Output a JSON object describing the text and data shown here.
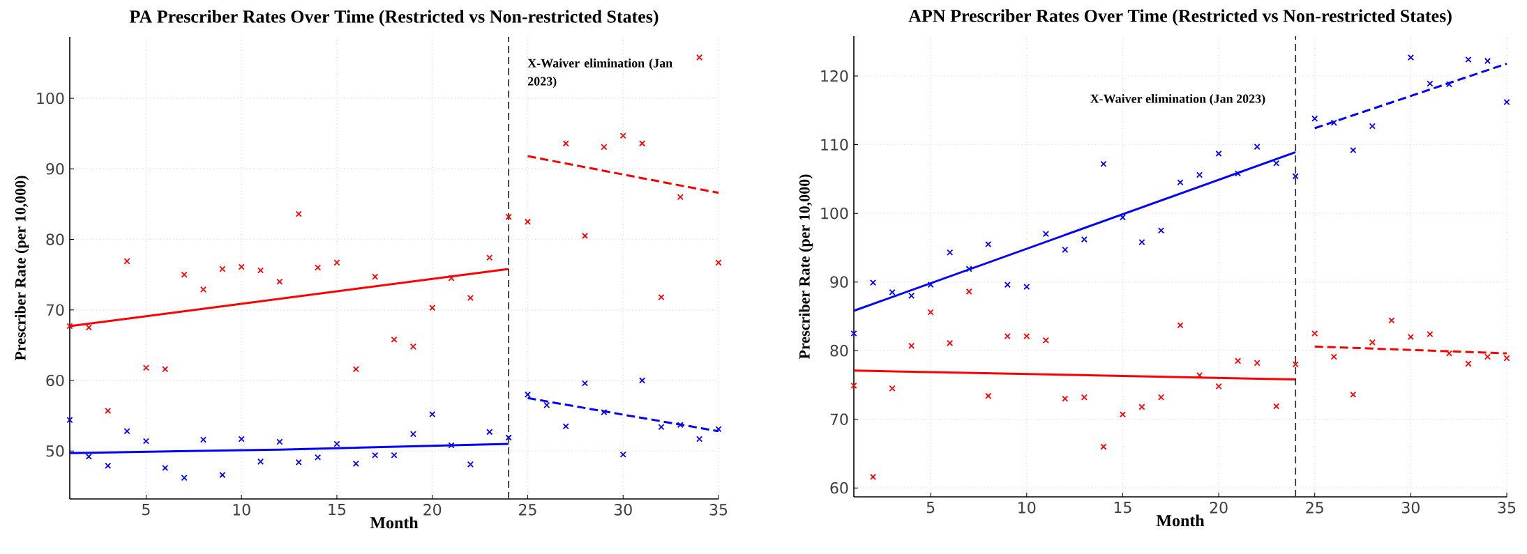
{
  "chart_data": [
    {
      "type": "scatter",
      "title": "PA Prescriber Rates Over Time (Restricted vs Non-restricted States)",
      "xlabel": "Month",
      "ylabel": "Prescriber Rate (per 10,000)",
      "grid": true,
      "x": [
        1,
        2,
        3,
        4,
        5,
        6,
        7,
        8,
        9,
        10,
        11,
        12,
        13,
        14,
        15,
        16,
        17,
        18,
        19,
        20,
        21,
        22,
        23,
        24,
        25,
        26,
        27,
        28,
        29,
        30,
        31,
        32,
        33,
        34,
        35
      ],
      "xlim": [
        1,
        35
      ],
      "ylim": [
        43.2,
        108.7
      ],
      "xticks": [
        5,
        10,
        15,
        20,
        25,
        30,
        35
      ],
      "yticks": [
        50,
        60,
        70,
        80,
        90,
        100
      ],
      "series": [
        {
          "color": "#ff0000",
          "marker": "cross",
          "values": [
            67.7,
            67.5,
            55.7,
            76.9,
            61.8,
            61.6,
            75.0,
            72.9,
            75.8,
            76.1,
            75.6,
            74.0,
            83.6,
            76.0,
            76.7,
            61.6,
            74.7,
            65.8,
            64.8,
            70.3,
            74.5,
            71.7,
            77.4,
            83.2,
            82.5,
            null,
            93.6,
            80.5,
            93.1,
            94.7,
            93.6,
            71.8,
            86.0,
            105.8,
            76.7
          ]
        },
        {
          "color": "#0000ff",
          "marker": "cross",
          "values": [
            54.4,
            49.2,
            47.9,
            52.8,
            51.4,
            47.6,
            46.2,
            51.6,
            46.6,
            51.7,
            48.5,
            51.3,
            48.4,
            49.1,
            51.0,
            48.2,
            49.4,
            49.4,
            52.4,
            55.2,
            50.8,
            48.1,
            52.7,
            51.9,
            58.0,
            56.5,
            53.5,
            59.6,
            55.5,
            49.5,
            60.0,
            53.4,
            53.7,
            51.7,
            53.1
          ]
        },
        {
          "type": "line",
          "color": "#ff0000",
          "line_style": "solid",
          "x": [
            1,
            24
          ],
          "values": [
            67.7,
            75.8
          ]
        },
        {
          "type": "line",
          "color": "#ff0000",
          "line_style": "dashed",
          "x": [
            25,
            35
          ],
          "values": [
            91.8,
            86.6
          ]
        },
        {
          "type": "line",
          "color": "#0000ff",
          "line_style": "solid",
          "x": [
            1,
            12,
            24
          ],
          "values": [
            49.7,
            50.2,
            51.0
          ]
        },
        {
          "type": "line",
          "color": "#0000ff",
          "line_style": "dashed",
          "x": [
            25,
            35
          ],
          "values": [
            57.5,
            52.8
          ]
        }
      ],
      "ref_lines": [
        {
          "axis": "x",
          "value": 24,
          "label": "X-Waiver elimination (Jan 2023)",
          "color": "#333333",
          "line_style": "dashed"
        }
      ]
    },
    {
      "type": "scatter",
      "title": "APN Prescriber Rates Over Time (Restricted vs Non-restricted States)",
      "xlabel": "Month",
      "ylabel": "Prescriber Rate (per 10,000)",
      "grid": true,
      "x": [
        1,
        2,
        3,
        4,
        5,
        6,
        7,
        8,
        9,
        10,
        11,
        12,
        13,
        14,
        15,
        16,
        17,
        18,
        19,
        20,
        21,
        22,
        23,
        24,
        25,
        26,
        27,
        28,
        29,
        30,
        31,
        32,
        33,
        34,
        35
      ],
      "xlim": [
        1,
        35
      ],
      "ylim": [
        58.7,
        125.8
      ],
      "xticks": [
        5,
        10,
        15,
        20,
        25,
        30,
        35
      ],
      "yticks": [
        60,
        70,
        80,
        90,
        100,
        110,
        120
      ],
      "series": [
        {
          "color": "#ff0000",
          "marker": "cross",
          "values": [
            74.9,
            61.6,
            74.5,
            80.7,
            85.6,
            81.1,
            88.6,
            73.4,
            82.1,
            82.1,
            81.5,
            73.0,
            73.2,
            66.0,
            70.7,
            71.8,
            73.2,
            83.7,
            76.4,
            74.8,
            78.5,
            78.2,
            71.9,
            78.0,
            82.5,
            79.1,
            73.6,
            81.2,
            84.4,
            82.0,
            82.4,
            79.6,
            78.1,
            79.1,
            78.9
          ]
        },
        {
          "color": "#0000ff",
          "marker": "cross",
          "values": [
            82.5,
            89.9,
            88.5,
            88.0,
            89.6,
            94.3,
            91.9,
            95.5,
            89.6,
            89.3,
            97.0,
            94.7,
            96.2,
            107.2,
            99.4,
            95.8,
            97.5,
            104.5,
            105.6,
            108.7,
            105.8,
            109.7,
            107.3,
            105.4,
            113.8,
            113.2,
            109.2,
            112.7,
            null,
            122.7,
            118.9,
            118.8,
            122.4,
            122.2,
            116.2
          ]
        },
        {
          "type": "line",
          "color": "#ff0000",
          "line_style": "solid",
          "x": [
            1,
            24
          ],
          "values": [
            77.1,
            75.8
          ]
        },
        {
          "type": "line",
          "color": "#ff0000",
          "line_style": "dashed",
          "x": [
            25,
            35
          ],
          "values": [
            80.6,
            79.6
          ]
        },
        {
          "type": "line",
          "color": "#0000ff",
          "line_style": "solid",
          "x": [
            1,
            24
          ],
          "values": [
            85.8,
            108.9
          ]
        },
        {
          "type": "line",
          "color": "#0000ff",
          "line_style": "dashed",
          "x": [
            25,
            35
          ],
          "values": [
            112.4,
            121.8
          ]
        }
      ],
      "ref_lines": [
        {
          "axis": "x",
          "value": 24,
          "label": "X-Waiver elimination (Jan 2023)",
          "color": "#333333",
          "line_style": "dashed"
        }
      ]
    }
  ]
}
